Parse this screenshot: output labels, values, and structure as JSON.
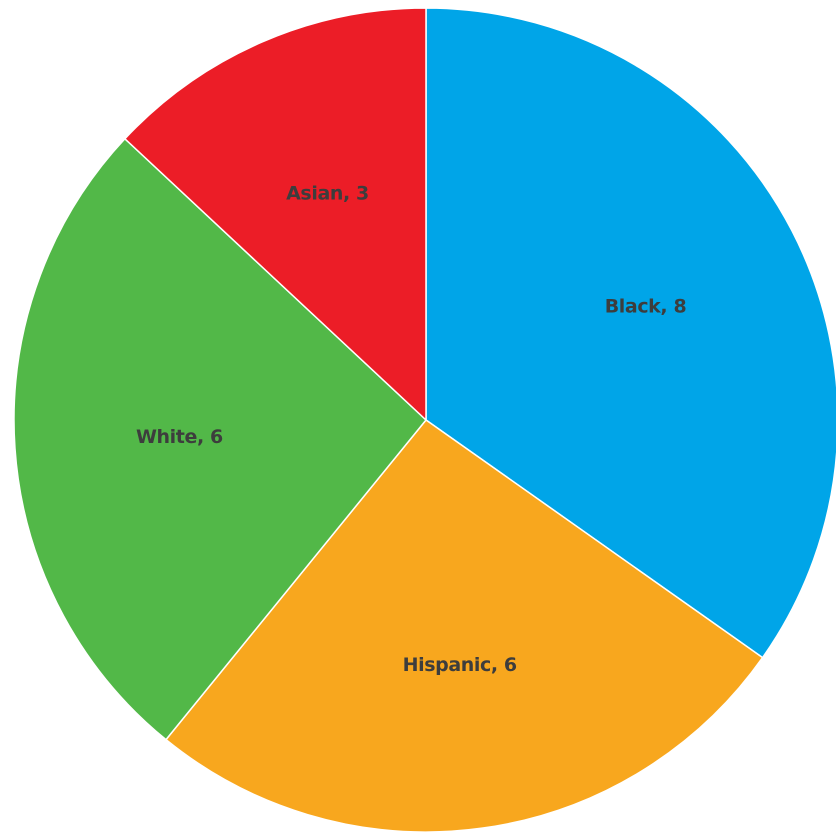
{
  "chart_data": {
    "type": "pie",
    "start_angle_deg": 0,
    "direction": "clockwise",
    "legend": "none",
    "slices": [
      {
        "name": "Black",
        "value": 8,
        "label": "Black, 8",
        "color": "#00a5e8"
      },
      {
        "name": "Hispanic",
        "value": 6,
        "label": "Hispanic, 6",
        "color": "#f8a71e"
      },
      {
        "name": "White",
        "value": 6,
        "label": "White, 6",
        "color": "#52b848"
      },
      {
        "name": "Asian",
        "value": 3,
        "label": "Asian, 3",
        "color": "#ec1d27"
      }
    ]
  }
}
